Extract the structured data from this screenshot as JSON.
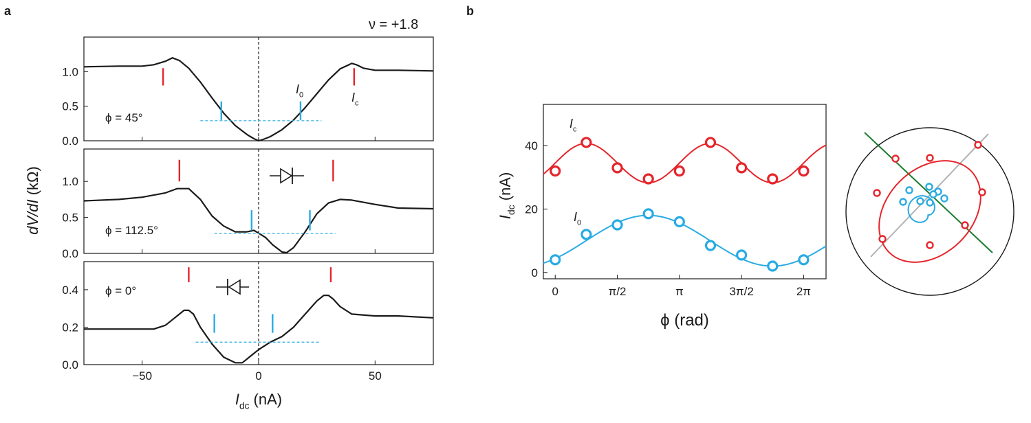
{
  "figure": {
    "panel_a_label": "a",
    "panel_b_label": "b",
    "filling_label": "ν = +1.8"
  },
  "colors": {
    "ic": "#e5252b",
    "i0": "#29abe2",
    "trace": "#1a1a1a",
    "green_line": "#1a7a2e",
    "gray_line": "#b3b3b3"
  },
  "chart_data": [
    {
      "id": "panel-a-top",
      "type": "line",
      "annotation": "ϕ = 45°",
      "xlim": [
        -75,
        75
      ],
      "ylim": [
        0,
        1.5
      ],
      "yticks": [
        "0.0",
        "0.5",
        "1.0"
      ],
      "ytick_values": [
        0,
        0.5,
        1.0
      ],
      "x": [
        -75,
        -60,
        -50,
        -45,
        -40,
        -37,
        -34,
        -30,
        -25,
        -20,
        -15,
        -10,
        -5,
        -2,
        0,
        2,
        5,
        10,
        15,
        20,
        25,
        30,
        35,
        40,
        42,
        45,
        50,
        60,
        75
      ],
      "y": [
        1.07,
        1.08,
        1.08,
        1.1,
        1.15,
        1.2,
        1.16,
        1.05,
        0.85,
        0.62,
        0.4,
        0.22,
        0.09,
        0.03,
        0.0,
        0.02,
        0.06,
        0.16,
        0.3,
        0.48,
        0.68,
        0.88,
        1.04,
        1.12,
        1.1,
        1.05,
        1.02,
        1.02,
        1.01
      ],
      "ic_markers": {
        "x": [
          -41,
          41
        ],
        "y_range": [
          0.8,
          1.05
        ]
      },
      "i0_markers": {
        "x": [
          -16,
          18
        ],
        "y_range": [
          0.3,
          0.57
        ]
      },
      "i0_level": {
        "y": 0.29,
        "x_range": [
          -25,
          27
        ]
      },
      "i0_label": "I0",
      "ic_label": "Ic"
    },
    {
      "id": "panel-a-middle",
      "type": "line",
      "annotation": "ϕ = 112.5°",
      "xlim": [
        -75,
        75
      ],
      "ylim": [
        0,
        1.45
      ],
      "yticks": [
        "0.0",
        "0.5",
        "1.0"
      ],
      "ytick_values": [
        0,
        0.5,
        1.0
      ],
      "x": [
        -75,
        -60,
        -50,
        -40,
        -35,
        -30,
        -25,
        -20,
        -15,
        -10,
        -5,
        -2,
        0,
        3,
        6,
        10,
        12,
        15,
        20,
        25,
        30,
        35,
        40,
        50,
        60,
        75
      ],
      "y": [
        0.73,
        0.75,
        0.78,
        0.84,
        0.9,
        0.9,
        0.75,
        0.52,
        0.38,
        0.3,
        0.3,
        0.32,
        0.28,
        0.22,
        0.12,
        0.02,
        0.01,
        0.08,
        0.3,
        0.55,
        0.7,
        0.75,
        0.74,
        0.68,
        0.63,
        0.62
      ],
      "ic_markers": {
        "x": [
          -34,
          32
        ],
        "y_range": [
          1.0,
          1.3
        ]
      },
      "i0_markers": {
        "x": [
          -3,
          22
        ],
        "y_range": [
          0.32,
          0.6
        ]
      },
      "i0_level": {
        "y": 0.28,
        "x_range": [
          -19,
          33
        ]
      }
    },
    {
      "id": "panel-a-bottom",
      "type": "line",
      "annotation": "ϕ = 0°",
      "xlim": [
        -75,
        75
      ],
      "ylim": [
        0,
        0.55
      ],
      "yticks": [
        "0.0",
        "0.2",
        "0.4"
      ],
      "ytick_values": [
        0,
        0.2,
        0.4
      ],
      "xticks": [
        "−50",
        "0",
        "50"
      ],
      "xtick_values": [
        -50,
        0,
        50
      ],
      "xlabel_prefix": "I",
      "xlabel_sub": "dc",
      "xlabel_suffix": " (nA)",
      "x": [
        -75,
        -60,
        -45,
        -40,
        -35,
        -32,
        -30,
        -28,
        -25,
        -20,
        -15,
        -10,
        -7,
        -3,
        0,
        5,
        10,
        15,
        20,
        25,
        28,
        30,
        32,
        35,
        40,
        50,
        60,
        75
      ],
      "y": [
        0.19,
        0.19,
        0.19,
        0.21,
        0.26,
        0.29,
        0.29,
        0.27,
        0.2,
        0.11,
        0.04,
        0.01,
        0.01,
        0.05,
        0.08,
        0.12,
        0.15,
        0.2,
        0.27,
        0.34,
        0.37,
        0.37,
        0.35,
        0.31,
        0.27,
        0.26,
        0.26,
        0.25
      ],
      "ic_markers": {
        "x": [
          -30,
          31
        ],
        "y_range": [
          0.44,
          0.52
        ]
      },
      "i0_markers": {
        "x": [
          -19,
          6
        ],
        "y_range": [
          0.17,
          0.27
        ]
      },
      "i0_level": {
        "y": 0.12,
        "x_range": [
          -27,
          26
        ]
      }
    },
    {
      "id": "panel-b-main",
      "type": "scatter",
      "xlim_rad": [
        -0.3,
        6.85
      ],
      "ylim": [
        -2,
        53
      ],
      "xticks": [
        "0",
        "π/2",
        "π",
        "3π/2",
        "2π"
      ],
      "xtick_values": [
        0,
        1.5708,
        3.1416,
        4.7124,
        6.2832
      ],
      "yticks": [
        "0",
        "20",
        "40"
      ],
      "ytick_values": [
        0,
        20,
        40
      ],
      "xlabel": "ϕ (rad)",
      "ylabel_prefix": "I",
      "ylabel_sub": "dc",
      "ylabel_suffix": " (nA)",
      "series": [
        {
          "name": "Ic",
          "x": [
            0,
            0.7854,
            1.5708,
            2.3562,
            3.1416,
            3.927,
            4.7124,
            5.4978,
            6.2832
          ],
          "y": [
            32,
            41,
            33,
            29.5,
            32,
            41,
            33,
            29.5,
            32
          ],
          "fit": {
            "offset": 34.5,
            "amp": 6.2,
            "freq": 2,
            "phase": 0.7854
          }
        },
        {
          "name": "I0",
          "x": [
            0,
            0.7854,
            1.5708,
            2.3562,
            3.1416,
            3.927,
            4.7124,
            5.4978,
            6.2832
          ],
          "y": [
            4,
            12,
            15,
            18.5,
            16,
            8.5,
            5.5,
            2,
            4
          ],
          "fit": {
            "offset": 10,
            "amp": 8,
            "freq": 1,
            "phase": 2.35
          }
        }
      ]
    },
    {
      "id": "panel-b-polar",
      "type": "scatter",
      "note": "polar representation; no printed labels"
    }
  ]
}
